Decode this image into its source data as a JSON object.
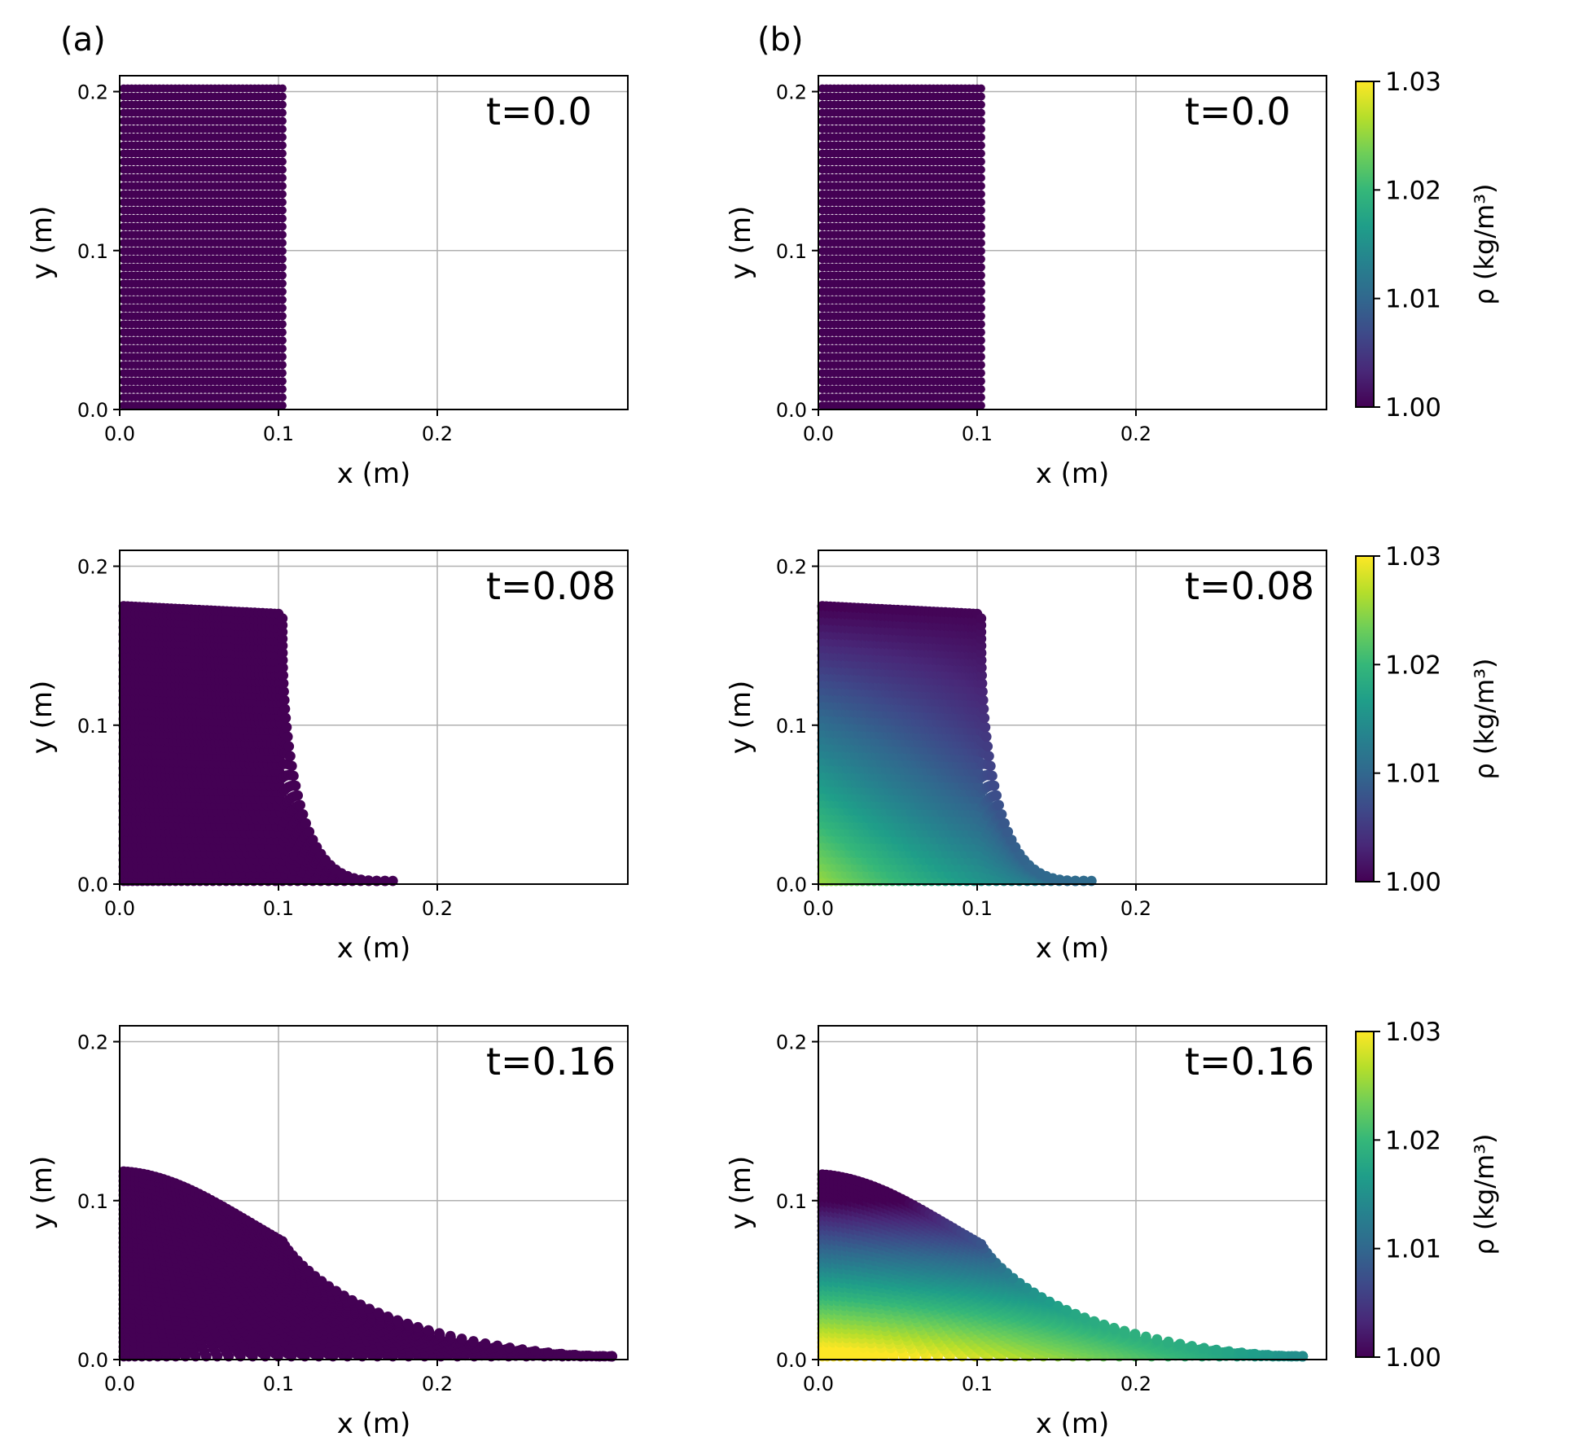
{
  "figure": {
    "panel_labels": [
      "(a)",
      "(b)"
    ],
    "colors": {
      "uniform_particle": "#440154",
      "axes": "#000000",
      "grid": "#b0b0b0",
      "viridis": [
        "#440154",
        "#482878",
        "#3e4989",
        "#31688e",
        "#26828e",
        "#1f9e89",
        "#35b779",
        "#6ece58",
        "#b5de2b",
        "#fde725"
      ]
    }
  },
  "chart_data": [
    {
      "id": "a1",
      "type": "scatter",
      "panel": "(a)",
      "color_mode": "uniform",
      "time": 0.0,
      "annotation": "t=0.0",
      "xlabel": "x (m)",
      "ylabel": "y (m)",
      "xlim": [
        0,
        0.32
      ],
      "ylim": [
        0,
        0.21
      ],
      "xticks": [
        "0.0",
        "0.1",
        "0.2"
      ],
      "yticks": [
        "0.0",
        "0.1",
        "0.2"
      ],
      "grid": true,
      "front_x": 0.102,
      "top_y": 0.202
    },
    {
      "id": "b1",
      "type": "scatter",
      "panel": "(b)",
      "color_mode": "density",
      "time": 0.0,
      "annotation": "t=0.0",
      "xlabel": "x (m)",
      "ylabel": "y (m)",
      "xlim": [
        0,
        0.32
      ],
      "ylim": [
        0,
        0.21
      ],
      "xticks": [
        "0.0",
        "0.1",
        "0.2"
      ],
      "yticks": [
        "0.0",
        "0.1",
        "0.2"
      ],
      "grid": true,
      "front_x": 0.102,
      "top_y": 0.202,
      "colorbar": {
        "label": "ρ (kg/m³)",
        "range": [
          1.0,
          1.03
        ],
        "ticks": [
          "1.03",
          "1.02",
          "1.01",
          "1.00"
        ]
      }
    },
    {
      "id": "a2",
      "type": "scatter",
      "panel": "(a)",
      "color_mode": "uniform",
      "time": 0.08,
      "annotation": "t=0.08",
      "xlabel": "x (m)",
      "ylabel": "y (m)",
      "xlim": [
        0,
        0.32
      ],
      "ylim": [
        0,
        0.21
      ],
      "xticks": [
        "0.0",
        "0.1",
        "0.2"
      ],
      "yticks": [
        "0.0",
        "0.1",
        "0.2"
      ],
      "grid": true,
      "front_x": 0.172,
      "top_y": 0.175
    },
    {
      "id": "b2",
      "type": "scatter",
      "panel": "(b)",
      "color_mode": "density",
      "time": 0.08,
      "annotation": "t=0.08",
      "xlabel": "x (m)",
      "ylabel": "y (m)",
      "xlim": [
        0,
        0.32
      ],
      "ylim": [
        0,
        0.21
      ],
      "xticks": [
        "0.0",
        "0.1",
        "0.2"
      ],
      "yticks": [
        "0.0",
        "0.1",
        "0.2"
      ],
      "grid": true,
      "front_x": 0.172,
      "top_y": 0.175,
      "colorbar": {
        "label": "ρ (kg/m³)",
        "range": [
          1.0,
          1.03
        ],
        "ticks": [
          "1.03",
          "1.02",
          "1.01",
          "1.00"
        ]
      }
    },
    {
      "id": "a3",
      "type": "scatter",
      "panel": "(a)",
      "color_mode": "uniform",
      "time": 0.16,
      "annotation": "t=0.16",
      "xlabel": "x (m)",
      "ylabel": "y (m)",
      "xlim": [
        0,
        0.32
      ],
      "ylim": [
        0,
        0.21
      ],
      "xticks": [
        "0.0",
        "0.1",
        "0.2"
      ],
      "yticks": [
        "0.0",
        "0.1",
        "0.2"
      ],
      "grid": true,
      "front_x": 0.31,
      "top_y": 0.122
    },
    {
      "id": "b3",
      "type": "scatter",
      "panel": "(b)",
      "color_mode": "density",
      "time": 0.16,
      "annotation": "t=0.16",
      "xlabel": "x (m)",
      "ylabel": "y (m)",
      "xlim": [
        0,
        0.32
      ],
      "ylim": [
        0,
        0.21
      ],
      "xticks": [
        "0.0",
        "0.1",
        "0.2"
      ],
      "yticks": [
        "0.0",
        "0.1",
        "0.2"
      ],
      "grid": true,
      "front_x": 0.305,
      "top_y": 0.12,
      "colorbar": {
        "label": "ρ (kg/m³)",
        "range": [
          1.0,
          1.03
        ],
        "ticks": [
          "1.03",
          "1.02",
          "1.01",
          "1.00"
        ]
      }
    }
  ]
}
